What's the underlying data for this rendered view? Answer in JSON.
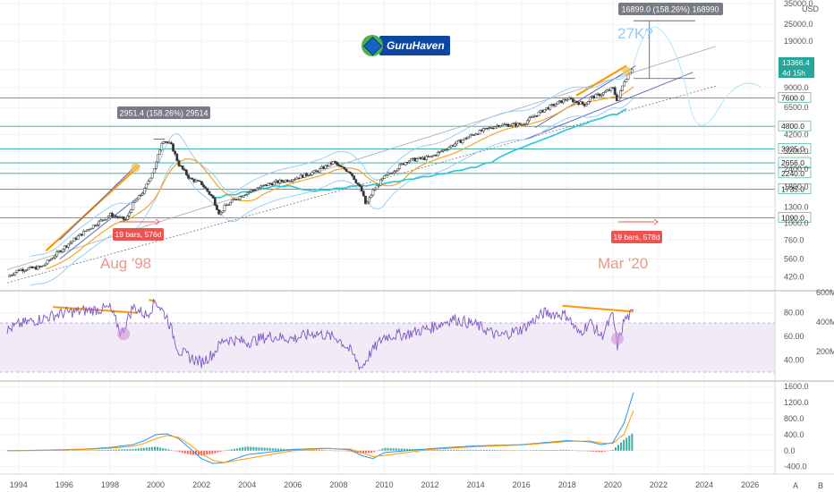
{
  "currency": "USD",
  "logo": {
    "name": "GuruHaven"
  },
  "measure_top": "16899.0 (158.26%) 168990",
  "measure_left": "2951.4 (158.26%) 29514",
  "annotation_27k": "27K?",
  "bars_left": "19 bars, 576d",
  "bars_right": "19 bars, 578d",
  "label_aug98": "Aug '98",
  "label_mar20": "Mar '20",
  "price_label": "13366.4",
  "countdown_label": "4d 15h",
  "corner_a": "A",
  "corner_b": "B",
  "colors": {
    "candle_up": "#26a69a",
    "candle_down": "#ef5350",
    "level": "#26a69a",
    "ma_orange": "#f5a623",
    "ma_teal": "#26c6da",
    "band": "#90caf9",
    "rsi": "#7e57c2",
    "macd": "#2196f3",
    "signal": "#ff9800",
    "trend_orange": "#ff9800",
    "channel": "#5c6bc0"
  },
  "chart_data": [
    {
      "type": "line",
      "panel": "price",
      "scale": "log",
      "ylim": [
        360,
        35000
      ],
      "x_ticks": [
        "1994",
        "1996",
        "1998",
        "2000",
        "2002",
        "2004",
        "2006",
        "2008",
        "2010",
        "2012",
        "2014",
        "2016",
        "2018",
        "2020",
        "2022",
        "2024",
        "2026"
      ],
      "y_ticks": [
        "420.0",
        "560.0",
        "760.0",
        "1000.0",
        "1300.0",
        "1800.0",
        "2400.0",
        "3200.0",
        "4200.0",
        "6500.0",
        "9000.0",
        "12000.0",
        "19000.0",
        "25000.0",
        "35000.0"
      ],
      "levels": [
        "7600.0",
        "4800.0",
        "3325.0",
        "2656.0",
        "2240.0",
        "1735.0",
        "1090.0"
      ],
      "x": [
        1993.5,
        1994,
        1995,
        1996,
        1997,
        1998,
        1998.7,
        1999,
        1999.5,
        2000,
        2000.3,
        2000.7,
        2001,
        2001.5,
        2002,
        2002.5,
        2002.8,
        2003,
        2003.5,
        2004,
        2005,
        2006,
        2007,
        2007.8,
        2008,
        2008.5,
        2009,
        2009.2,
        2009.5,
        2010,
        2011,
        2012,
        2013,
        2014,
        2015,
        2016,
        2017,
        2018,
        2018.8,
        2019,
        2019.5,
        2020,
        2020.2,
        2020.5,
        2020.9
      ],
      "close": [
        420,
        470,
        490,
        680,
        900,
        1150,
        1050,
        1350,
        1700,
        2600,
        3900,
        3500,
        2600,
        2050,
        1900,
        1500,
        1150,
        1300,
        1480,
        1650,
        1900,
        2050,
        2300,
        2700,
        2500,
        2300,
        1700,
        1330,
        1680,
        2100,
        2750,
        2900,
        3550,
        4300,
        4900,
        4950,
        6300,
        7500,
        6800,
        7600,
        8100,
        8900,
        7200,
        10000,
        12800
      ]
    },
    {
      "type": "line",
      "panel": "rsi",
      "ylim": [
        25,
        95
      ],
      "y_ticks": [
        "40.00",
        "60.00",
        "80.00"
      ],
      "x": [
        1993.5,
        1994,
        1995,
        1996,
        1997,
        1998,
        1998.5,
        1999,
        1999.6,
        2000,
        2000.5,
        2001,
        2001.5,
        2002,
        2002.5,
        2003,
        2004,
        2005,
        2006,
        2007,
        2008,
        2008.5,
        2009,
        2009.4,
        2010,
        2011,
        2012,
        2013,
        2014,
        2015,
        2016,
        2017,
        2018,
        2018.5,
        2019,
        2019.5,
        2020,
        2020.2,
        2020.5,
        2020.9
      ],
      "values": [
        65,
        70,
        75,
        80,
        82,
        84,
        62,
        85,
        78,
        90,
        76,
        48,
        42,
        38,
        45,
        58,
        55,
        60,
        58,
        63,
        58,
        48,
        33,
        46,
        60,
        62,
        67,
        75,
        70,
        60,
        66,
        80,
        78,
        62,
        72,
        60,
        78,
        52,
        74,
        80
      ]
    },
    {
      "type": "bar",
      "panel": "macd",
      "ylim": [
        -520,
        1650
      ],
      "y_ticks": [
        "-400.0",
        "0.0",
        "400.0",
        "800.0",
        "1200.0",
        "1600.0"
      ],
      "x": [
        1993.5,
        1995,
        1997,
        1998,
        1999,
        1999.5,
        2000,
        2000.5,
        2001,
        2001.5,
        2002,
        2002.5,
        2003,
        2004,
        2006,
        2007.5,
        2008.5,
        2009,
        2009.5,
        2010,
        2012,
        2014,
        2016,
        2018,
        2019,
        2019.5,
        2020,
        2020.5,
        2020.9
      ],
      "macd": [
        0,
        10,
        40,
        80,
        150,
        250,
        400,
        420,
        300,
        50,
        -200,
        -320,
        -300,
        -100,
        30,
        60,
        20,
        -120,
        -200,
        -50,
        50,
        120,
        150,
        250,
        220,
        150,
        200,
        700,
        1450
      ],
      "signal": [
        0,
        5,
        30,
        60,
        110,
        180,
        300,
        380,
        330,
        150,
        -80,
        -240,
        -300,
        -200,
        0,
        50,
        40,
        -50,
        -150,
        -120,
        30,
        100,
        140,
        230,
        240,
        190,
        180,
        420,
        1000
      ]
    }
  ]
}
